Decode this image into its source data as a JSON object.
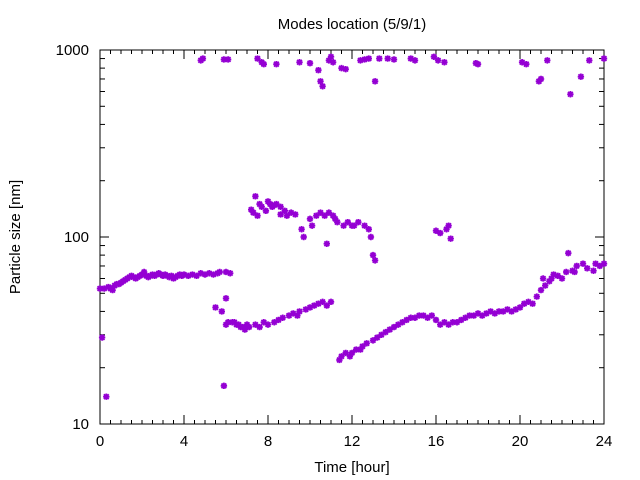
{
  "chart_data": {
    "type": "scatter",
    "title": "Modes location (5/9/1)",
    "xlabel": "Time [hour]",
    "ylabel": "Particle size [nm]",
    "xlim": [
      0,
      24
    ],
    "ylim": [
      10,
      1000
    ],
    "yscale": "log",
    "grid": false,
    "legend": "none",
    "x_ticks": [
      0,
      4,
      8,
      12,
      16,
      20,
      24
    ],
    "x_tick_labels": [
      "0",
      "4",
      "8",
      "12",
      "16",
      "20",
      "24"
    ],
    "y_ticks": [
      10,
      100,
      1000
    ],
    "y_tick_labels": [
      "10",
      "100",
      "1000"
    ],
    "marker": "star",
    "color": "#9400d3",
    "points": [
      [
        0.0,
        53
      ],
      [
        0.1,
        29
      ],
      [
        0.2,
        53
      ],
      [
        0.3,
        14
      ],
      [
        0.4,
        54
      ],
      [
        0.5,
        53
      ],
      [
        0.6,
        52
      ],
      [
        0.7,
        55
      ],
      [
        0.8,
        56
      ],
      [
        0.9,
        56
      ],
      [
        1.0,
        57
      ],
      [
        1.1,
        58
      ],
      [
        1.2,
        59
      ],
      [
        1.3,
        60
      ],
      [
        1.4,
        61
      ],
      [
        1.5,
        62
      ],
      [
        1.6,
        61
      ],
      [
        1.7,
        60
      ],
      [
        1.8,
        61
      ],
      [
        1.9,
        62
      ],
      [
        2.0,
        63
      ],
      [
        2.1,
        65
      ],
      [
        2.2,
        62
      ],
      [
        2.3,
        61
      ],
      [
        2.4,
        62
      ],
      [
        2.5,
        63
      ],
      [
        2.6,
        62
      ],
      [
        2.7,
        63
      ],
      [
        2.8,
        64
      ],
      [
        2.9,
        63
      ],
      [
        3.0,
        62
      ],
      [
        3.1,
        63
      ],
      [
        3.2,
        62
      ],
      [
        3.3,
        61
      ],
      [
        3.4,
        62
      ],
      [
        3.5,
        60
      ],
      [
        3.6,
        61
      ],
      [
        3.7,
        62
      ],
      [
        3.8,
        63
      ],
      [
        3.9,
        62
      ],
      [
        4.0,
        63
      ],
      [
        4.2,
        62
      ],
      [
        4.4,
        63
      ],
      [
        4.6,
        62
      ],
      [
        4.8,
        64
      ],
      [
        4.8,
        880
      ],
      [
        4.9,
        900
      ],
      [
        5.0,
        63
      ],
      [
        5.2,
        64
      ],
      [
        5.4,
        63
      ],
      [
        5.5,
        42
      ],
      [
        5.6,
        64
      ],
      [
        5.7,
        65
      ],
      [
        5.8,
        40
      ],
      [
        5.9,
        16
      ],
      [
        5.9,
        890
      ],
      [
        6.0,
        34
      ],
      [
        6.0,
        65
      ],
      [
        6.0,
        47
      ],
      [
        6.1,
        890
      ],
      [
        6.1,
        35
      ],
      [
        6.2,
        64
      ],
      [
        6.3,
        35
      ],
      [
        6.4,
        35
      ],
      [
        6.5,
        34
      ],
      [
        6.6,
        34
      ],
      [
        6.7,
        33
      ],
      [
        6.8,
        33
      ],
      [
        6.9,
        32
      ],
      [
        7.0,
        34
      ],
      [
        7.1,
        33
      ],
      [
        7.2,
        140
      ],
      [
        7.3,
        135
      ],
      [
        7.4,
        165
      ],
      [
        7.4,
        34
      ],
      [
        7.5,
        130
      ],
      [
        7.5,
        900
      ],
      [
        7.6,
        150
      ],
      [
        7.6,
        33
      ],
      [
        7.7,
        860
      ],
      [
        7.7,
        145
      ],
      [
        7.8,
        840
      ],
      [
        7.8,
        35
      ],
      [
        7.9,
        138
      ],
      [
        8.0,
        34
      ],
      [
        8.0,
        155
      ],
      [
        8.1,
        150
      ],
      [
        8.2,
        145
      ],
      [
        8.3,
        148
      ],
      [
        8.3,
        35
      ],
      [
        8.4,
        150
      ],
      [
        8.4,
        840
      ],
      [
        8.5,
        36
      ],
      [
        8.6,
        145
      ],
      [
        8.6,
        132
      ],
      [
        8.7,
        37
      ],
      [
        8.8,
        138
      ],
      [
        8.9,
        130
      ],
      [
        9.0,
        38
      ],
      [
        9.1,
        135
      ],
      [
        9.2,
        39
      ],
      [
        9.3,
        132
      ],
      [
        9.4,
        38
      ],
      [
        9.5,
        40
      ],
      [
        9.5,
        860
      ],
      [
        9.6,
        110
      ],
      [
        9.7,
        100
      ],
      [
        9.8,
        41
      ],
      [
        10.0,
        42
      ],
      [
        10.0,
        125
      ],
      [
        10.0,
        850
      ],
      [
        10.1,
        115
      ],
      [
        10.2,
        43
      ],
      [
        10.3,
        130
      ],
      [
        10.4,
        44
      ],
      [
        10.4,
        780
      ],
      [
        10.5,
        135
      ],
      [
        10.5,
        680
      ],
      [
        10.6,
        45
      ],
      [
        10.6,
        640
      ],
      [
        10.7,
        130
      ],
      [
        10.8,
        43
      ],
      [
        10.8,
        92
      ],
      [
        10.9,
        135
      ],
      [
        10.9,
        880
      ],
      [
        11.0,
        45
      ],
      [
        11.0,
        920
      ],
      [
        11.1,
        130
      ],
      [
        11.1,
        860
      ],
      [
        11.2,
        125
      ],
      [
        11.3,
        120
      ],
      [
        11.4,
        22
      ],
      [
        11.5,
        23
      ],
      [
        11.5,
        800
      ],
      [
        11.6,
        115
      ],
      [
        11.7,
        24
      ],
      [
        11.7,
        790
      ],
      [
        11.8,
        120
      ],
      [
        11.9,
        23
      ],
      [
        12.0,
        24
      ],
      [
        12.0,
        115
      ],
      [
        12.1,
        115
      ],
      [
        12.2,
        25
      ],
      [
        12.3,
        120
      ],
      [
        12.4,
        25
      ],
      [
        12.4,
        880
      ],
      [
        12.5,
        26
      ],
      [
        12.6,
        115
      ],
      [
        12.6,
        890
      ],
      [
        12.7,
        27
      ],
      [
        12.8,
        110
      ],
      [
        12.8,
        900
      ],
      [
        12.9,
        100
      ],
      [
        13.0,
        28
      ],
      [
        13.0,
        80
      ],
      [
        13.1,
        75
      ],
      [
        13.1,
        680
      ],
      [
        13.2,
        29
      ],
      [
        13.3,
        900
      ],
      [
        13.4,
        30
      ],
      [
        13.6,
        31
      ],
      [
        13.7,
        900
      ],
      [
        13.8,
        32
      ],
      [
        14.0,
        33
      ],
      [
        14.0,
        890
      ],
      [
        14.2,
        34
      ],
      [
        14.4,
        35
      ],
      [
        14.6,
        36
      ],
      [
        14.8,
        37
      ],
      [
        14.8,
        900
      ],
      [
        15.0,
        37
      ],
      [
        15.0,
        880
      ],
      [
        15.2,
        38
      ],
      [
        15.4,
        38
      ],
      [
        15.6,
        37
      ],
      [
        15.8,
        38
      ],
      [
        15.9,
        920
      ],
      [
        16.0,
        36
      ],
      [
        16.0,
        108
      ],
      [
        16.1,
        880
      ],
      [
        16.2,
        34
      ],
      [
        16.2,
        105
      ],
      [
        16.4,
        35
      ],
      [
        16.4,
        860
      ],
      [
        16.5,
        110
      ],
      [
        16.6,
        34
      ],
      [
        16.6,
        115
      ],
      [
        16.7,
        98
      ],
      [
        16.8,
        35
      ],
      [
        17.0,
        35
      ],
      [
        17.2,
        36
      ],
      [
        17.4,
        37
      ],
      [
        17.6,
        38
      ],
      [
        17.8,
        38
      ],
      [
        17.9,
        850
      ],
      [
        18.0,
        39
      ],
      [
        18.0,
        840
      ],
      [
        18.2,
        38
      ],
      [
        18.4,
        39
      ],
      [
        18.6,
        40
      ],
      [
        18.8,
        39
      ],
      [
        19.0,
        40
      ],
      [
        19.2,
        40
      ],
      [
        19.4,
        41
      ],
      [
        19.6,
        40
      ],
      [
        19.8,
        41
      ],
      [
        20.0,
        42
      ],
      [
        20.1,
        860
      ],
      [
        20.2,
        44
      ],
      [
        20.3,
        840
      ],
      [
        20.4,
        45
      ],
      [
        20.6,
        44
      ],
      [
        20.8,
        48
      ],
      [
        20.9,
        680
      ],
      [
        21.0,
        52
      ],
      [
        21.0,
        700
      ],
      [
        21.1,
        60
      ],
      [
        21.2,
        55
      ],
      [
        21.3,
        880
      ],
      [
        21.4,
        58
      ],
      [
        21.5,
        60
      ],
      [
        21.6,
        63
      ],
      [
        21.8,
        62
      ],
      [
        22.0,
        60
      ],
      [
        22.2,
        65
      ],
      [
        22.3,
        82
      ],
      [
        22.4,
        580
      ],
      [
        22.5,
        66
      ],
      [
        22.6,
        65
      ],
      [
        22.7,
        70
      ],
      [
        22.9,
        720
      ],
      [
        23.0,
        72
      ],
      [
        23.2,
        68
      ],
      [
        23.3,
        880
      ],
      [
        23.5,
        66
      ],
      [
        23.6,
        72
      ],
      [
        23.8,
        70
      ],
      [
        24.0,
        72
      ],
      [
        24.0,
        900
      ]
    ]
  }
}
